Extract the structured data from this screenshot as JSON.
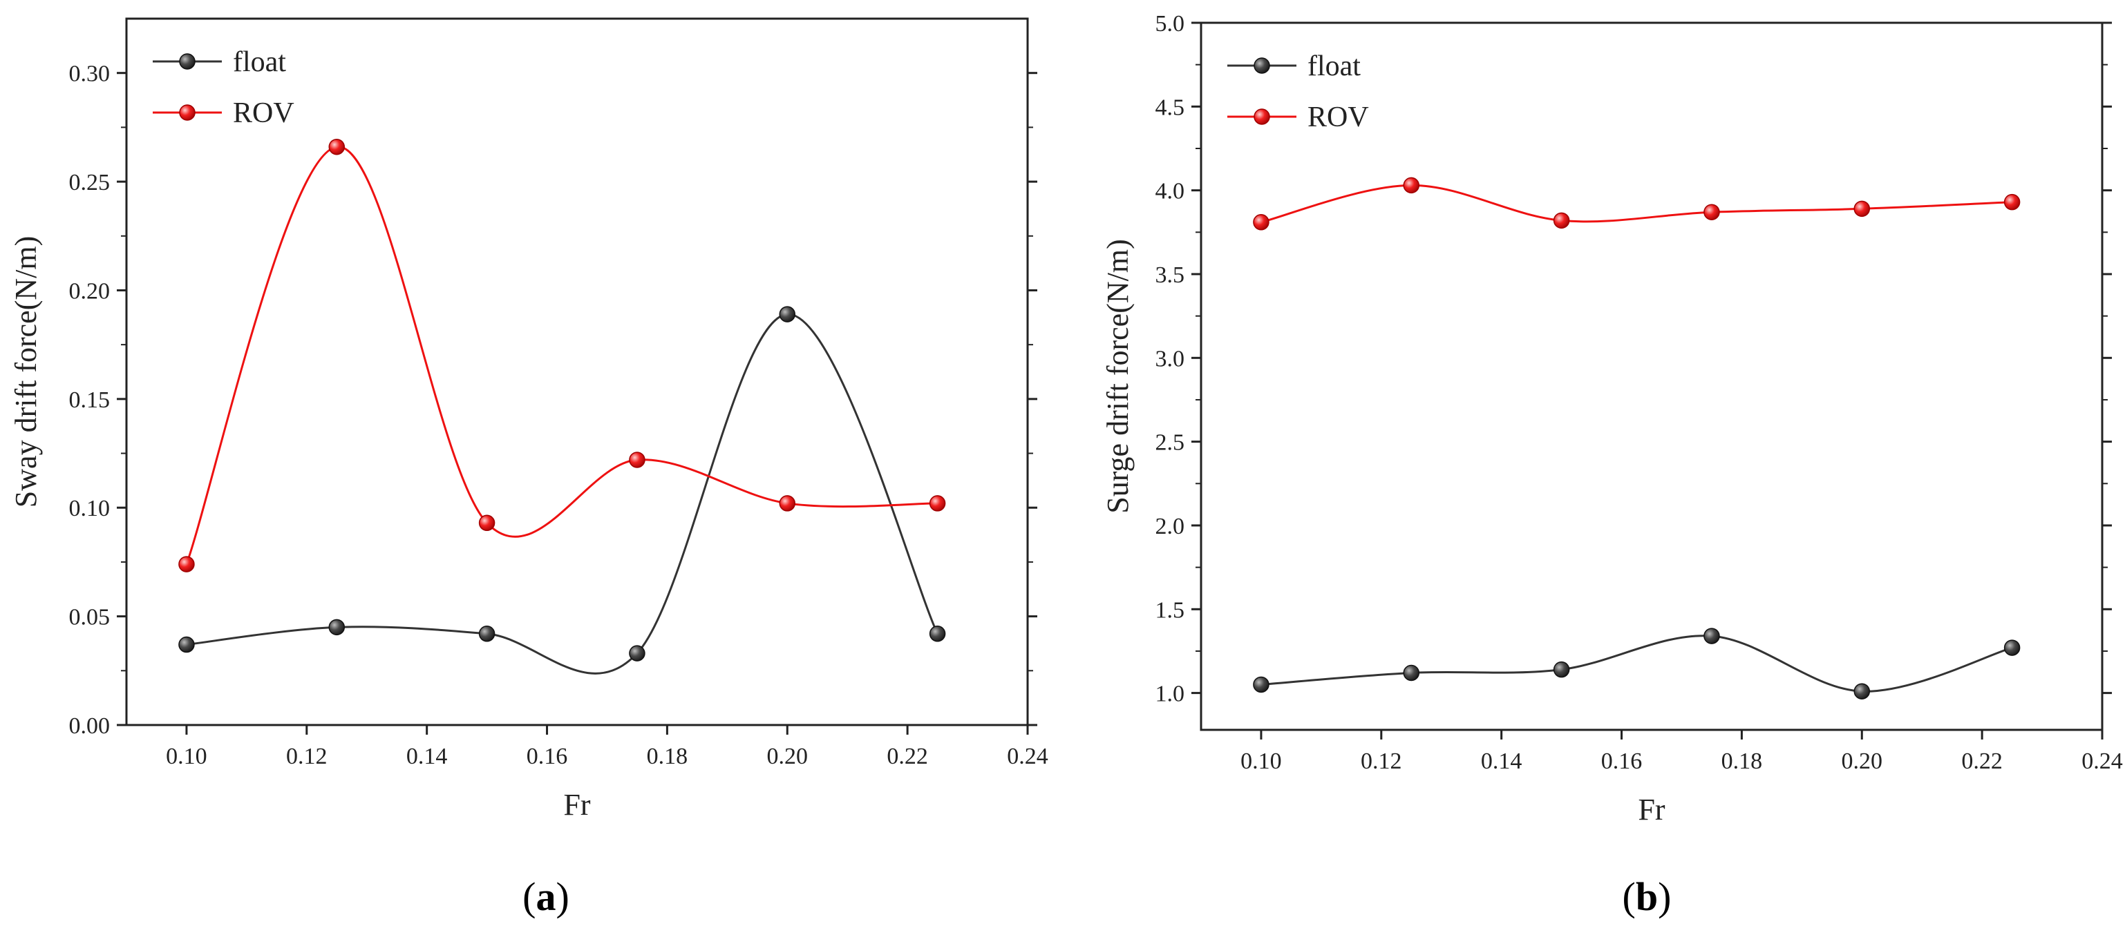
{
  "chart_data": [
    {
      "type": "line",
      "panel_label": "(a)",
      "panel_letter": "a",
      "xlabel": "Fr",
      "ylabel": "Sway drift force(N/m)",
      "x": [
        0.1,
        0.125,
        0.15,
        0.175,
        0.2,
        0.225
      ],
      "xlim": [
        0.09,
        0.24
      ],
      "ylim": [
        0.0,
        0.325
      ],
      "xticks": [
        0.1,
        0.12,
        0.14,
        0.16,
        0.18,
        0.2,
        0.22,
        0.24
      ],
      "xtick_labels": [
        "0.10",
        "0.12",
        "0.14",
        "0.16",
        "0.18",
        "0.20",
        "0.22",
        "0.24"
      ],
      "yticks": [
        0.0,
        0.05,
        0.1,
        0.15,
        0.2,
        0.25,
        0.3
      ],
      "ytick_labels": [
        "0.00",
        "0.05",
        "0.10",
        "0.15",
        "0.20",
        "0.25",
        "0.30"
      ],
      "legend_position": "top-left",
      "series": [
        {
          "name": "float",
          "color": "#333333",
          "values": [
            0.037,
            0.045,
            0.042,
            0.033,
            0.189,
            0.042
          ]
        },
        {
          "name": "ROV",
          "color": "#ee1111",
          "values": [
            0.074,
            0.266,
            0.093,
            0.122,
            0.102,
            0.102
          ]
        }
      ]
    },
    {
      "type": "line",
      "panel_label": "(b)",
      "panel_letter": "b",
      "xlabel": "Fr",
      "ylabel": "Surge drift force(N/m)",
      "x": [
        0.1,
        0.125,
        0.15,
        0.175,
        0.2,
        0.225
      ],
      "xlim": [
        0.09,
        0.24
      ],
      "ylim": [
        0.78,
        5.0
      ],
      "xticks": [
        0.1,
        0.12,
        0.14,
        0.16,
        0.18,
        0.2,
        0.22,
        0.24
      ],
      "xtick_labels": [
        "0.10",
        "0.12",
        "0.14",
        "0.16",
        "0.18",
        "0.20",
        "0.22",
        "0.24"
      ],
      "yticks": [
        1.0,
        1.5,
        2.0,
        2.5,
        3.0,
        3.5,
        4.0,
        4.5,
        5.0
      ],
      "ytick_labels": [
        "1.0",
        "1.5",
        "2.0",
        "2.5",
        "3.0",
        "3.5",
        "4.0",
        "4.5",
        "5.0"
      ],
      "legend_position": "top-left",
      "series": [
        {
          "name": "float",
          "color": "#333333",
          "values": [
            1.05,
            1.12,
            1.14,
            1.34,
            1.01,
            1.27
          ]
        },
        {
          "name": "ROV",
          "color": "#ee1111",
          "values": [
            3.81,
            4.03,
            3.82,
            3.87,
            3.89,
            3.93
          ]
        }
      ]
    }
  ]
}
